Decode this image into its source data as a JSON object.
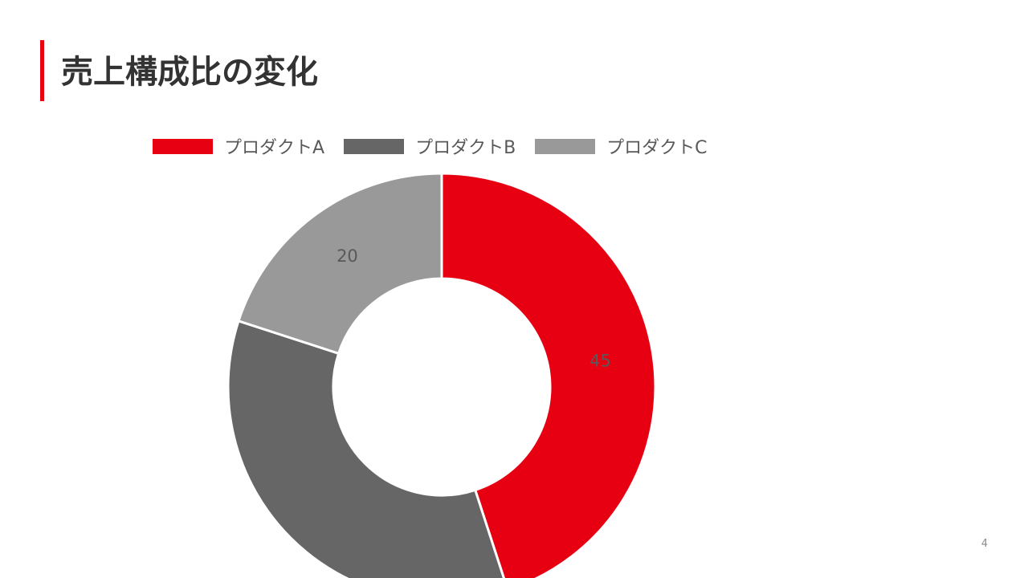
{
  "slide": {
    "title": "売上構成比の変化",
    "page_number": "4"
  },
  "colors": {
    "accent": "#e60012",
    "title_text": "#333333",
    "label_text": "#595959",
    "separator": "#ffffff"
  },
  "legend": {
    "items": [
      {
        "label": "プロダクトA",
        "color": "#e60012"
      },
      {
        "label": "プロダクトB",
        "color": "#666666"
      },
      {
        "label": "プロダクトC",
        "color": "#999999"
      }
    ]
  },
  "chart_data": {
    "type": "pie",
    "variant": "donut",
    "title": "",
    "categories": [
      "プロダクトA",
      "プロダクトB",
      "プロダクトC"
    ],
    "values": [
      45,
      35,
      20
    ],
    "colors": [
      "#e60012",
      "#666666",
      "#999999"
    ],
    "data_labels": [
      "45",
      "",
      "20"
    ],
    "start_angle_deg": 0,
    "direction": "clockwise",
    "legend_position": "top"
  }
}
